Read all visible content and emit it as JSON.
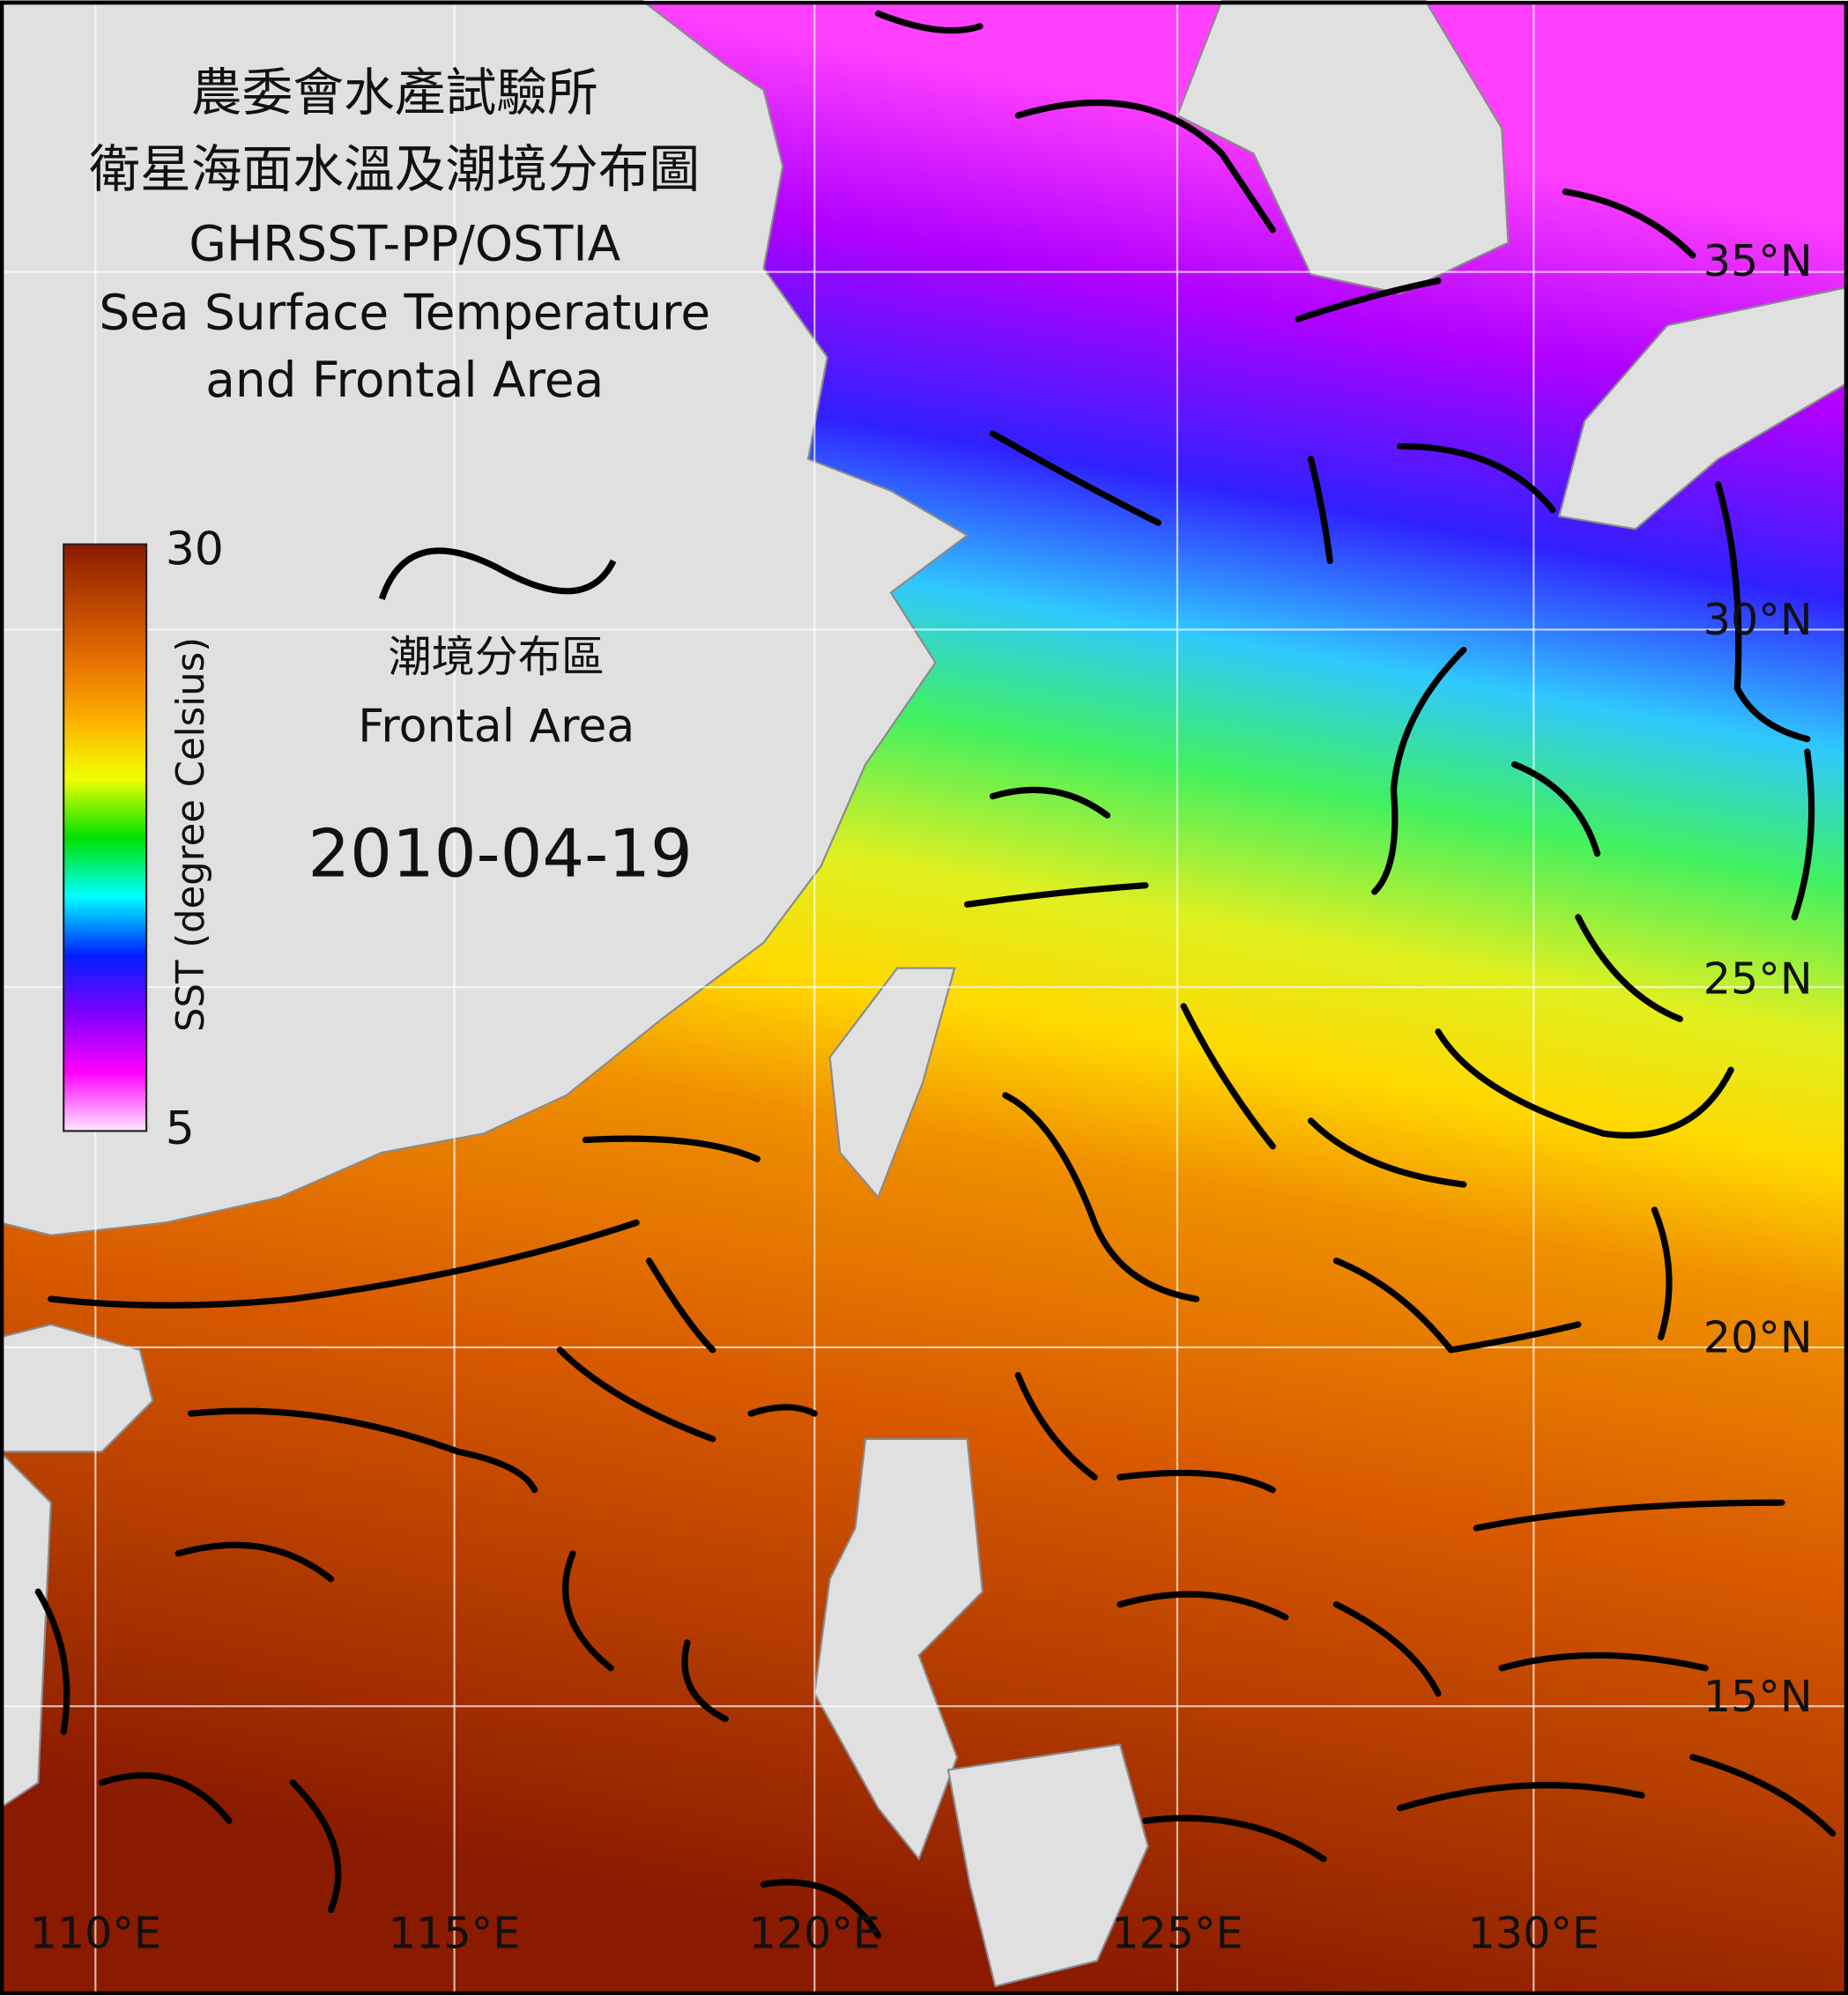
{
  "header": {
    "lines": [
      "農委會水產試驗所",
      "衛星海面水溫及潮境分布圖",
      "GHRSST-PP/OSTIA",
      "Sea Surface Temperature",
      "and Frontal Area"
    ]
  },
  "colorbar": {
    "label": "SST (degree Celsius)",
    "ticks": [
      30,
      5
    ]
  },
  "legend": {
    "label_zh": "潮境分布區",
    "label_en": "Frontal Area"
  },
  "date": "2010-04-19",
  "grid": {
    "lat_labels": [
      "35°N",
      "30°N",
      "25°N",
      "20°N",
      "15°N"
    ],
    "lon_labels": [
      "110°E",
      "115°E",
      "120°E",
      "125°E",
      "130°E"
    ]
  }
}
